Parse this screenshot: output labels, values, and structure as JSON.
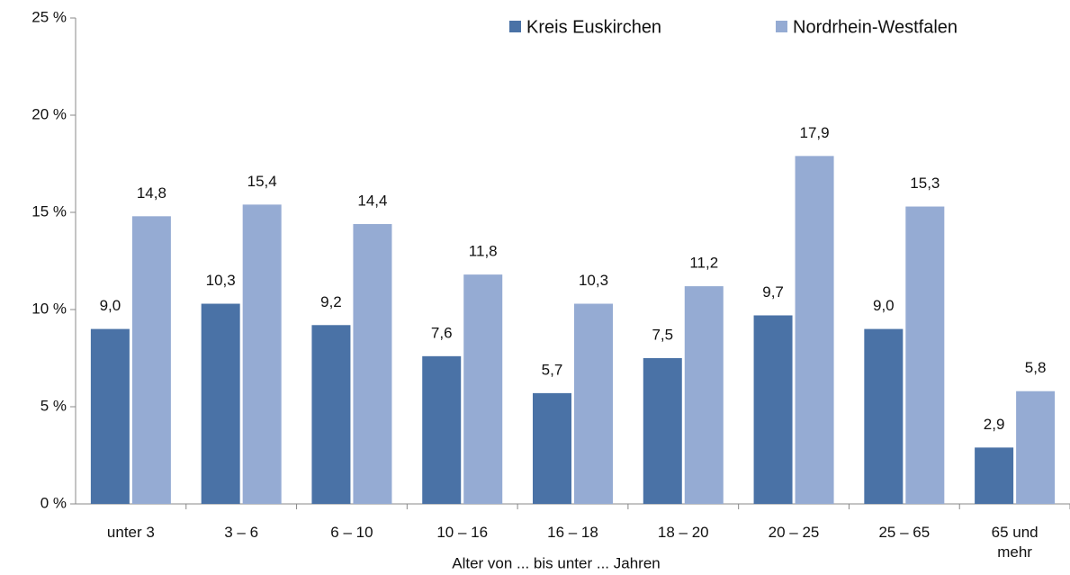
{
  "chart_data": {
    "type": "bar",
    "x_label": "Alter von ... bis unter ... Jahren",
    "categories": [
      "unter 3",
      "3 –  6",
      "6 – 10",
      "10 – 16",
      "16 – 18",
      "18 – 20",
      "20 – 25",
      "25 – 65",
      "65 und mehr"
    ],
    "series": [
      {
        "name": "Kreis Euskirchen",
        "color": "#4a72a6",
        "values": [
          9.0,
          10.3,
          9.2,
          7.6,
          5.7,
          7.5,
          9.7,
          9.0,
          2.9
        ],
        "value_labels": [
          "9,0",
          "10,3",
          "9,2",
          "7,6",
          "5,7",
          "7,5",
          "9,7",
          "9,0",
          "2,9"
        ]
      },
      {
        "name": "Nordrhein-Westfalen",
        "color": "#95abd3",
        "values": [
          14.8,
          15.4,
          14.4,
          11.8,
          10.3,
          11.2,
          17.9,
          15.3,
          5.8
        ],
        "value_labels": [
          "14,8",
          "15,4",
          "14,4",
          "11,8",
          "10,3",
          "11,2",
          "17,9",
          "15,3",
          "5,8"
        ]
      }
    ],
    "ylim": [
      0,
      25
    ],
    "yticks": [
      {
        "value": 0,
        "label": "0 %"
      },
      {
        "value": 5,
        "label": "5 %"
      },
      {
        "value": 10,
        "label": "10 %"
      },
      {
        "value": 15,
        "label": "15 %"
      },
      {
        "value": 20,
        "label": "20 %"
      },
      {
        "value": 25,
        "label": "25 %"
      }
    ],
    "legend": "top-right",
    "grid": false
  }
}
